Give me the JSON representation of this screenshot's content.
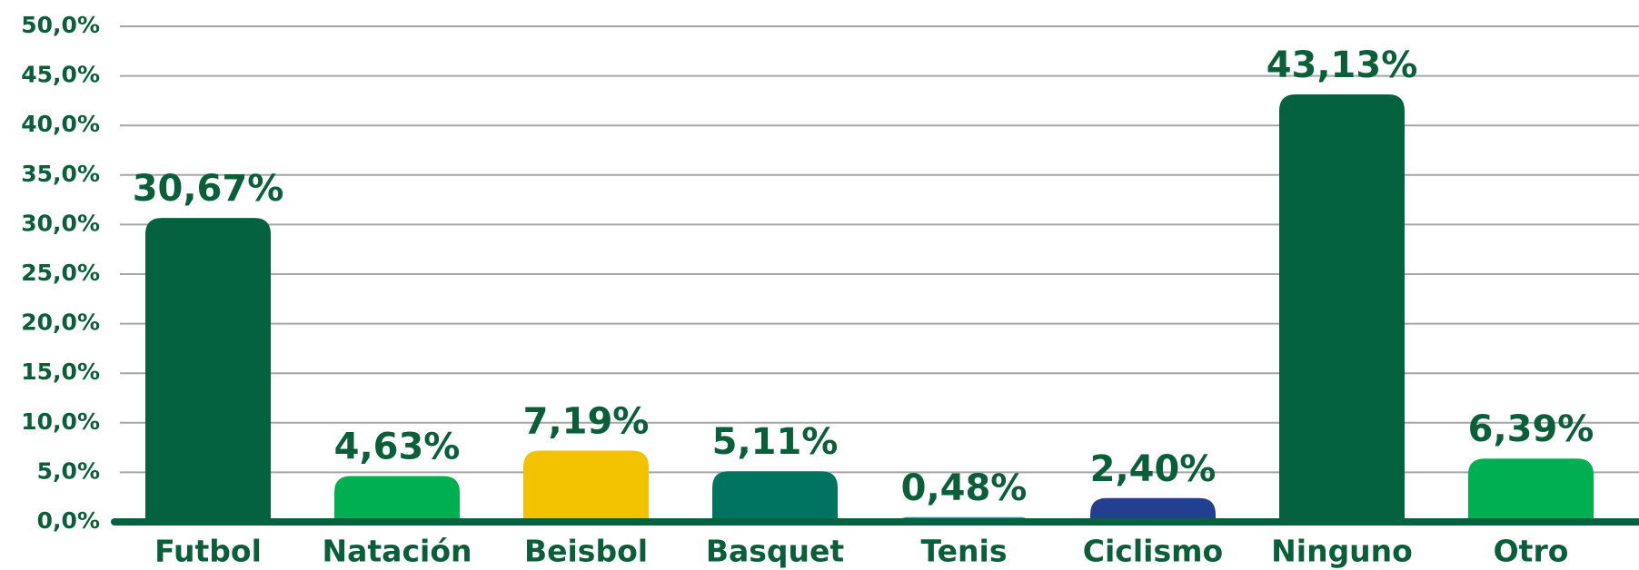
{
  "chart_data": {
    "type": "bar",
    "categories": [
      "Futbol",
      "Natación",
      "Beisbol",
      "Basquet",
      "Tenis",
      "Ciclismo",
      "Ninguno",
      "Otro"
    ],
    "values": [
      30.67,
      4.63,
      7.19,
      5.11,
      0.48,
      2.4,
      43.13,
      6.39
    ],
    "value_labels": [
      "30,67%",
      "4,63%",
      "7,19%",
      "5,11%",
      "0,48%",
      "2,40%",
      "43,13%",
      "6,39%"
    ],
    "colors": [
      "#046241",
      "#00b050",
      "#f2c200",
      "#007461",
      "#00a6b5",
      "#233f8f",
      "#046241",
      "#00b050"
    ],
    "ylim": [
      0,
      50
    ],
    "yticks": [
      {
        "value": 0,
        "label": "0,0%"
      },
      {
        "value": 5,
        "label": "5,0%"
      },
      {
        "value": 10,
        "label": "10,0%"
      },
      {
        "value": 15,
        "label": "15,0%"
      },
      {
        "value": 20,
        "label": "20,0%"
      },
      {
        "value": 25,
        "label": "25,0%"
      },
      {
        "value": 30,
        "label": "30,0%"
      },
      {
        "value": 35,
        "label": "35,0%"
      },
      {
        "value": 40,
        "label": "40,0%"
      },
      {
        "value": 45,
        "label": "45,0%"
      },
      {
        "value": 50,
        "label": "50,0%"
      }
    ],
    "grid": true
  }
}
